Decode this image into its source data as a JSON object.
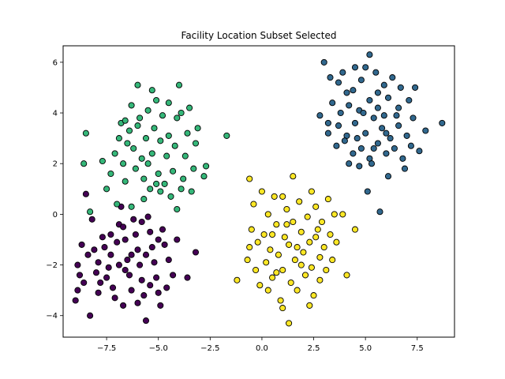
{
  "chart_data": {
    "type": "scatter",
    "title": "Facility Location Subset Selected",
    "xlabel": "",
    "ylabel": "",
    "xlim": [
      -9.6,
      9.3
    ],
    "ylim": [
      -4.85,
      6.65
    ],
    "x_ticks": [
      -7.5,
      -5.0,
      -2.5,
      0.0,
      2.5,
      5.0,
      7.5
    ],
    "x_tick_labels": [
      "−7.5",
      "−5.0",
      "−2.5",
      "0.0",
      "2.5",
      "5.0",
      "7.5"
    ],
    "y_ticks": [
      -4,
      -2,
      0,
      2,
      4,
      6
    ],
    "y_tick_labels": [
      "−4",
      "−2",
      "0",
      "2",
      "4",
      "6"
    ],
    "grid": false,
    "series": [
      {
        "color": "#440154",
        "points": [
          [
            -8.5,
            0.8
          ],
          [
            -8.2,
            -0.2
          ],
          [
            -8.7,
            -1.2
          ],
          [
            -8.4,
            -1.6
          ],
          [
            -8.9,
            -2.0
          ],
          [
            -8.8,
            -2.4
          ],
          [
            -8.6,
            -2.7
          ],
          [
            -8.9,
            -3.0
          ],
          [
            -9.0,
            -3.4
          ],
          [
            -8.3,
            -4.0
          ],
          [
            -8.0,
            -2.3
          ],
          [
            -7.9,
            -1.9
          ],
          [
            -7.7,
            -0.9
          ],
          [
            -7.6,
            -1.3
          ],
          [
            -7.8,
            -2.7
          ],
          [
            -7.4,
            -2.1
          ],
          [
            -7.3,
            -1.6
          ],
          [
            -7.2,
            -2.9
          ],
          [
            -7.1,
            -3.3
          ],
          [
            -6.9,
            -0.4
          ],
          [
            -6.8,
            0.3
          ],
          [
            -6.7,
            -0.5
          ],
          [
            -6.6,
            -1.0
          ],
          [
            -6.5,
            -1.8
          ],
          [
            -6.4,
            -2.4
          ],
          [
            -6.3,
            -3.0
          ],
          [
            -6.7,
            -3.6
          ],
          [
            -6.2,
            -0.2
          ],
          [
            -6.1,
            -0.8
          ],
          [
            -6.0,
            -1.4
          ],
          [
            -5.9,
            -2.0
          ],
          [
            -5.8,
            -2.6
          ],
          [
            -5.7,
            -3.2
          ],
          [
            -5.6,
            -4.2
          ],
          [
            -5.5,
            -0.1
          ],
          [
            -5.4,
            -0.7
          ],
          [
            -5.3,
            -1.3
          ],
          [
            -5.2,
            -1.9
          ],
          [
            -5.1,
            -2.5
          ],
          [
            -5.0,
            -3.1
          ],
          [
            -4.9,
            -3.6
          ],
          [
            -4.8,
            -0.6
          ],
          [
            -4.7,
            -1.2
          ],
          [
            -4.5,
            -1.8
          ],
          [
            -4.3,
            -2.4
          ],
          [
            -4.1,
            -1.0
          ],
          [
            -3.6,
            -2.5
          ],
          [
            -3.2,
            -1.5
          ],
          [
            -5.8,
            -0.3
          ],
          [
            -6.3,
            -1.6
          ],
          [
            -7.0,
            -1.1
          ],
          [
            -7.5,
            -2.5
          ],
          [
            -8.1,
            -1.4
          ],
          [
            -5.0,
            -1.0
          ],
          [
            -4.6,
            -2.9
          ],
          [
            -6.6,
            -2.2
          ],
          [
            -7.9,
            -3.1
          ],
          [
            -5.4,
            -2.8
          ],
          [
            -6.0,
            -3.5
          ],
          [
            -6.9,
            -2.0
          ],
          [
            -7.3,
            -0.8
          ],
          [
            -5.6,
            -1.6
          ]
        ]
      },
      {
        "color": "#31688e",
        "points": [
          [
            3.0,
            6.0
          ],
          [
            3.3,
            5.4
          ],
          [
            3.7,
            5.2
          ],
          [
            4.1,
            4.8
          ],
          [
            4.5,
            5.8
          ],
          [
            4.8,
            5.3
          ],
          [
            5.2,
            6.3
          ],
          [
            5.5,
            5.6
          ],
          [
            5.9,
            5.1
          ],
          [
            6.3,
            5.4
          ],
          [
            6.7,
            5.0
          ],
          [
            7.4,
            5.0
          ],
          [
            7.1,
            4.5
          ],
          [
            6.6,
            4.2
          ],
          [
            6.1,
            4.6
          ],
          [
            5.6,
            4.2
          ],
          [
            5.2,
            4.5
          ],
          [
            4.7,
            4.1
          ],
          [
            4.2,
            4.3
          ],
          [
            3.8,
            4.0
          ],
          [
            3.4,
            4.4
          ],
          [
            2.8,
            3.9
          ],
          [
            3.2,
            3.6
          ],
          [
            3.7,
            3.5
          ],
          [
            4.1,
            3.1
          ],
          [
            4.5,
            3.6
          ],
          [
            5.0,
            3.2
          ],
          [
            5.4,
            3.8
          ],
          [
            5.8,
            3.4
          ],
          [
            6.2,
            3.0
          ],
          [
            6.6,
            3.5
          ],
          [
            7.0,
            3.1
          ],
          [
            7.3,
            3.8
          ],
          [
            7.9,
            3.3
          ],
          [
            8.7,
            3.6
          ],
          [
            3.2,
            3.2
          ],
          [
            3.6,
            2.7
          ],
          [
            4.0,
            2.9
          ],
          [
            4.4,
            2.4
          ],
          [
            4.8,
            2.6
          ],
          [
            5.2,
            2.2
          ],
          [
            5.6,
            2.8
          ],
          [
            6.0,
            2.4
          ],
          [
            6.4,
            2.6
          ],
          [
            6.8,
            2.2
          ],
          [
            7.2,
            2.7
          ],
          [
            7.6,
            2.5
          ],
          [
            4.2,
            2.0
          ],
          [
            4.7,
            1.9
          ],
          [
            5.3,
            2.0
          ],
          [
            5.1,
            0.9
          ],
          [
            5.7,
            0.1
          ],
          [
            6.1,
            1.5
          ],
          [
            6.9,
            1.8
          ],
          [
            4.9,
            4.0
          ],
          [
            5.9,
            3.9
          ],
          [
            4.4,
            4.9
          ],
          [
            5.6,
            4.8
          ],
          [
            6.5,
            3.9
          ],
          [
            3.9,
            5.6
          ],
          [
            5.0,
            5.8
          ],
          [
            4.6,
            3.0
          ],
          [
            5.4,
            2.6
          ],
          [
            6.0,
            3.2
          ]
        ]
      },
      {
        "color": "#35b779",
        "points": [
          [
            -8.5,
            3.2
          ],
          [
            -8.6,
            2.0
          ],
          [
            -8.3,
            0.1
          ],
          [
            -7.7,
            2.1
          ],
          [
            -7.5,
            1.0
          ],
          [
            -7.3,
            1.6
          ],
          [
            -7.1,
            2.4
          ],
          [
            -6.9,
            3.0
          ],
          [
            -6.8,
            3.6
          ],
          [
            -6.7,
            2.0
          ],
          [
            -6.6,
            1.3
          ],
          [
            -6.5,
            2.8
          ],
          [
            -6.4,
            3.3
          ],
          [
            -6.3,
            4.3
          ],
          [
            -6.2,
            2.6
          ],
          [
            -6.1,
            1.8
          ],
          [
            -6.0,
            5.1
          ],
          [
            -5.9,
            3.8
          ],
          [
            -5.8,
            2.2
          ],
          [
            -5.7,
            1.4
          ],
          [
            -5.6,
            3.0
          ],
          [
            -5.5,
            4.1
          ],
          [
            -5.4,
            1.0
          ],
          [
            -5.3,
            2.4
          ],
          [
            -5.2,
            3.4
          ],
          [
            -5.1,
            4.5
          ],
          [
            -5.0,
            1.6
          ],
          [
            -4.9,
            2.9
          ],
          [
            -4.8,
            3.9
          ],
          [
            -4.7,
            1.2
          ],
          [
            -4.6,
            2.3
          ],
          [
            -4.5,
            3.1
          ],
          [
            -4.4,
            0.7
          ],
          [
            -4.3,
            1.7
          ],
          [
            -4.2,
            2.7
          ],
          [
            -4.1,
            3.8
          ],
          [
            -4.0,
            5.1
          ],
          [
            -3.9,
            4.0
          ],
          [
            -3.8,
            1.4
          ],
          [
            -3.7,
            2.3
          ],
          [
            -3.6,
            3.2
          ],
          [
            -3.5,
            4.2
          ],
          [
            -3.4,
            0.9
          ],
          [
            -3.3,
            1.8
          ],
          [
            -3.2,
            2.8
          ],
          [
            -3.1,
            3.4
          ],
          [
            -2.7,
            1.9
          ],
          [
            -2.8,
            1.5
          ],
          [
            -1.7,
            3.1
          ],
          [
            -5.3,
            4.9
          ],
          [
            -5.7,
            0.6
          ],
          [
            -6.3,
            0.3
          ],
          [
            -4.9,
            0.9
          ],
          [
            -4.1,
            0.2
          ],
          [
            -5.5,
            2.0
          ],
          [
            -6.0,
            3.5
          ],
          [
            -4.5,
            4.4
          ],
          [
            -5.1,
            1.2
          ],
          [
            -3.9,
            1.0
          ],
          [
            -6.6,
            3.7
          ],
          [
            -7.0,
            0.4
          ]
        ]
      },
      {
        "color": "#fde725",
        "points": [
          [
            -1.2,
            -2.6
          ],
          [
            -0.7,
            -1.8
          ],
          [
            -0.6,
            -1.3
          ],
          [
            -0.5,
            -0.6
          ],
          [
            -0.4,
            0.4
          ],
          [
            -0.3,
            -2.2
          ],
          [
            -0.2,
            -1.1
          ],
          [
            -0.1,
            -2.8
          ],
          [
            0.0,
            0.9
          ],
          [
            0.1,
            -0.8
          ],
          [
            0.2,
            -1.9
          ],
          [
            0.3,
            0.0
          ],
          [
            0.4,
            -1.4
          ],
          [
            0.5,
            -2.5
          ],
          [
            0.6,
            0.7
          ],
          [
            0.7,
            -0.4
          ],
          [
            0.8,
            -1.6
          ],
          [
            0.9,
            -3.4
          ],
          [
            1.0,
            -2.2
          ],
          [
            1.1,
            -0.9
          ],
          [
            1.2,
            0.2
          ],
          [
            1.3,
            -1.2
          ],
          [
            1.4,
            -2.7
          ],
          [
            1.5,
            -0.3
          ],
          [
            1.6,
            -1.8
          ],
          [
            1.7,
            -3.0
          ],
          [
            1.8,
            0.5
          ],
          [
            1.9,
            -0.7
          ],
          [
            2.0,
            -1.5
          ],
          [
            2.1,
            -2.4
          ],
          [
            2.2,
            -0.1
          ],
          [
            2.3,
            -1.1
          ],
          [
            2.4,
            -2.1
          ],
          [
            2.5,
            -3.2
          ],
          [
            2.6,
            0.3
          ],
          [
            2.7,
            -0.6
          ],
          [
            2.8,
            -1.7
          ],
          [
            2.9,
            -0.3
          ],
          [
            3.0,
            -1.3
          ],
          [
            3.1,
            -2.2
          ],
          [
            3.2,
            0.6
          ],
          [
            3.3,
            -0.8
          ],
          [
            3.4,
            -1.8
          ],
          [
            3.5,
            0.0
          ],
          [
            3.6,
            -1.1
          ],
          [
            3.9,
            0.0
          ],
          [
            4.1,
            -2.4
          ],
          [
            4.5,
            -0.6
          ],
          [
            -0.6,
            1.4
          ],
          [
            1.5,
            1.5
          ],
          [
            2.4,
            0.9
          ],
          [
            1.0,
            0.7
          ],
          [
            0.5,
            -0.8
          ],
          [
            1.9,
            -2.0
          ],
          [
            2.8,
            -2.6
          ],
          [
            0.3,
            -3.0
          ],
          [
            1.3,
            -4.3
          ],
          [
            1.0,
            -3.7
          ],
          [
            2.3,
            -3.6
          ],
          [
            0.7,
            -2.3
          ],
          [
            1.7,
            -1.3
          ],
          [
            2.6,
            -0.9
          ],
          [
            1.2,
            -0.4
          ]
        ]
      }
    ]
  }
}
